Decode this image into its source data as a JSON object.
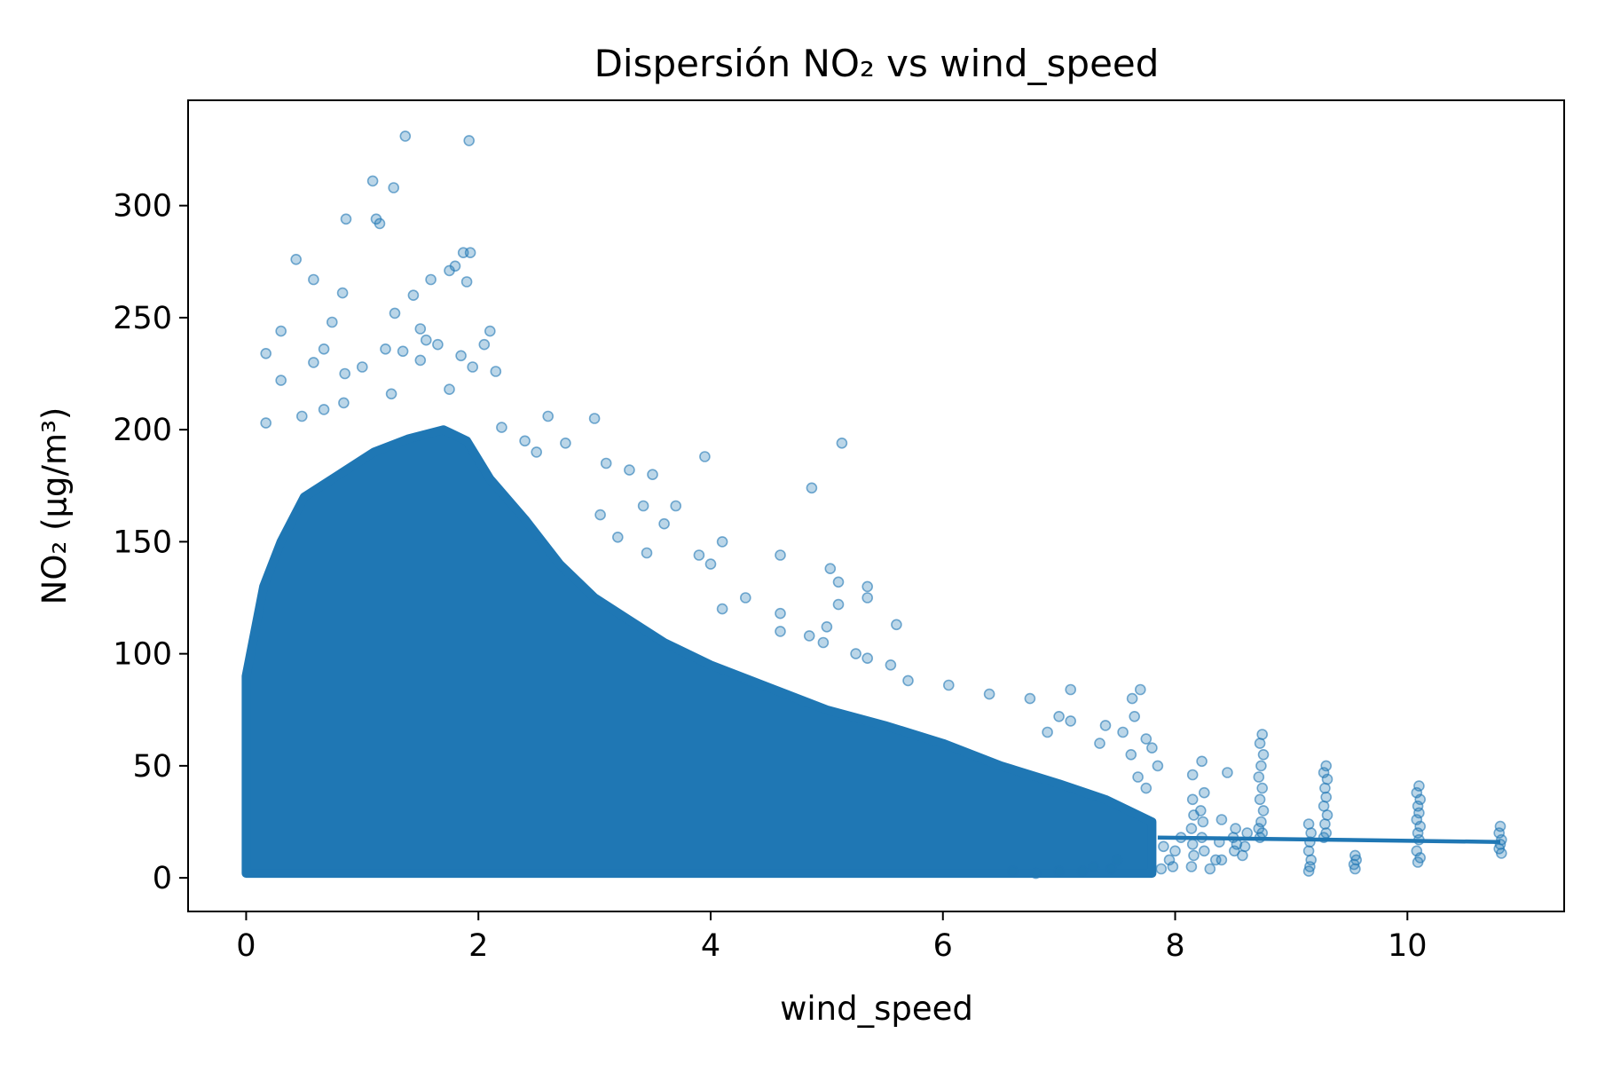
{
  "chart_data": {
    "type": "scatter",
    "title": "Dispersión NO₂ vs wind_speed",
    "xlabel": "wind_speed",
    "ylabel": "NO₂ (µg/m³)",
    "xlim": [
      -0.5,
      11.35
    ],
    "ylim": [
      -15,
      347
    ],
    "xticks": [
      0,
      2,
      4,
      6,
      8,
      10
    ],
    "yticks": [
      0,
      50,
      100,
      150,
      200,
      250,
      300
    ],
    "grid": false,
    "legend": "none",
    "colors": {
      "points": "#1f77b4",
      "trend": "#1f77b4",
      "axes": "#000000"
    },
    "series": [
      {
        "type": "scatter",
        "note_dense_envelope": [
          [
            0.0,
            2
          ],
          [
            0.0,
            90
          ],
          [
            0.15,
            130
          ],
          [
            0.3,
            150
          ],
          [
            0.5,
            170
          ],
          [
            0.8,
            180
          ],
          [
            1.1,
            190
          ],
          [
            1.4,
            196
          ],
          [
            1.7,
            200
          ],
          [
            1.9,
            195
          ],
          [
            2.1,
            178
          ],
          [
            2.4,
            160
          ],
          [
            2.7,
            140
          ],
          [
            3.0,
            125
          ],
          [
            3.3,
            115
          ],
          [
            3.6,
            105
          ],
          [
            4.0,
            95
          ],
          [
            4.5,
            85
          ],
          [
            5.0,
            75
          ],
          [
            5.5,
            68
          ],
          [
            6.0,
            60
          ],
          [
            6.5,
            50
          ],
          [
            7.0,
            42
          ],
          [
            7.4,
            35
          ],
          [
            7.8,
            25
          ],
          [
            7.8,
            2
          ]
        ],
        "points": [
          [
            1.37,
            331
          ],
          [
            1.92,
            329
          ],
          [
            1.09,
            311
          ],
          [
            1.27,
            308
          ],
          [
            1.12,
            294
          ],
          [
            0.86,
            294
          ],
          [
            1.15,
            292
          ],
          [
            1.87,
            279
          ],
          [
            1.93,
            279
          ],
          [
            0.43,
            276
          ],
          [
            1.8,
            273
          ],
          [
            1.75,
            271
          ],
          [
            0.58,
            267
          ],
          [
            1.59,
            267
          ],
          [
            1.9,
            266
          ],
          [
            0.83,
            261
          ],
          [
            1.44,
            260
          ],
          [
            1.28,
            252
          ],
          [
            0.74,
            248
          ],
          [
            0.3,
            244
          ],
          [
            1.5,
            245
          ],
          [
            1.55,
            240
          ],
          [
            2.1,
            244
          ],
          [
            0.17,
            234
          ],
          [
            0.67,
            236
          ],
          [
            1.2,
            236
          ],
          [
            0.58,
            230
          ],
          [
            1.35,
            235
          ],
          [
            1.65,
            238
          ],
          [
            1.85,
            233
          ],
          [
            2.05,
            238
          ],
          [
            0.3,
            222
          ],
          [
            0.85,
            225
          ],
          [
            1.0,
            228
          ],
          [
            1.5,
            231
          ],
          [
            1.95,
            228
          ],
          [
            2.15,
            226
          ],
          [
            0.48,
            206
          ],
          [
            0.67,
            209
          ],
          [
            0.84,
            212
          ],
          [
            1.25,
            216
          ],
          [
            1.75,
            218
          ],
          [
            0.17,
            203
          ],
          [
            2.2,
            201
          ],
          [
            2.6,
            206
          ],
          [
            3.0,
            205
          ],
          [
            2.4,
            195
          ],
          [
            2.5,
            190
          ],
          [
            2.75,
            194
          ],
          [
            3.1,
            185
          ],
          [
            3.3,
            182
          ],
          [
            3.5,
            180
          ],
          [
            3.95,
            188
          ],
          [
            4.87,
            174
          ],
          [
            5.13,
            194
          ],
          [
            3.42,
            166
          ],
          [
            3.7,
            166
          ],
          [
            3.05,
            162
          ],
          [
            3.6,
            158
          ],
          [
            3.2,
            152
          ],
          [
            4.1,
            150
          ],
          [
            3.45,
            145
          ],
          [
            3.9,
            144
          ],
          [
            4.0,
            140
          ],
          [
            4.6,
            144
          ],
          [
            5.03,
            138
          ],
          [
            5.1,
            132
          ],
          [
            5.35,
            130
          ],
          [
            4.3,
            125
          ],
          [
            4.1,
            120
          ],
          [
            4.6,
            118
          ],
          [
            5.1,
            122
          ],
          [
            5.6,
            113
          ],
          [
            5.35,
            125
          ],
          [
            4.6,
            110
          ],
          [
            4.85,
            108
          ],
          [
            5.0,
            112
          ],
          [
            5.25,
            100
          ],
          [
            5.35,
            98
          ],
          [
            5.55,
            95
          ],
          [
            4.97,
            105
          ],
          [
            5.7,
            88
          ],
          [
            6.05,
            86
          ],
          [
            6.4,
            82
          ],
          [
            6.75,
            80
          ],
          [
            7.1,
            84
          ],
          [
            7.7,
            84
          ],
          [
            7.63,
            80
          ],
          [
            7.0,
            72
          ],
          [
            7.1,
            70
          ],
          [
            7.4,
            68
          ],
          [
            7.65,
            72
          ],
          [
            7.55,
            65
          ],
          [
            6.9,
            65
          ],
          [
            7.35,
            60
          ],
          [
            7.75,
            62
          ],
          [
            7.8,
            58
          ],
          [
            7.62,
            55
          ],
          [
            7.85,
            50
          ],
          [
            7.68,
            45
          ],
          [
            7.75,
            40
          ],
          [
            8.23,
            52
          ],
          [
            8.15,
            46
          ],
          [
            8.45,
            47
          ],
          [
            8.75,
            64
          ],
          [
            8.73,
            60
          ],
          [
            8.76,
            55
          ],
          [
            8.74,
            50
          ],
          [
            8.72,
            45
          ],
          [
            8.75,
            40
          ],
          [
            8.73,
            35
          ],
          [
            8.76,
            30
          ],
          [
            8.74,
            25
          ],
          [
            8.72,
            22
          ],
          [
            8.75,
            20
          ],
          [
            8.73,
            18
          ],
          [
            9.3,
            50
          ],
          [
            9.28,
            47
          ],
          [
            9.31,
            44
          ],
          [
            9.29,
            40
          ],
          [
            9.3,
            36
          ],
          [
            9.28,
            32
          ],
          [
            9.31,
            28
          ],
          [
            9.29,
            24
          ],
          [
            9.3,
            20
          ],
          [
            9.28,
            18
          ],
          [
            10.1,
            41
          ],
          [
            10.08,
            38
          ],
          [
            10.11,
            35
          ],
          [
            10.09,
            32
          ],
          [
            10.1,
            29
          ],
          [
            10.08,
            26
          ],
          [
            10.11,
            23
          ],
          [
            10.09,
            20
          ],
          [
            10.1,
            17
          ],
          [
            10.08,
            12
          ],
          [
            10.11,
            9
          ],
          [
            10.09,
            7
          ],
          [
            9.15,
            24
          ],
          [
            9.17,
            20
          ],
          [
            9.16,
            16
          ],
          [
            9.15,
            12
          ],
          [
            9.17,
            8
          ],
          [
            9.16,
            5
          ],
          [
            9.15,
            3
          ],
          [
            9.55,
            10
          ],
          [
            9.56,
            8
          ],
          [
            9.54,
            6
          ],
          [
            9.55,
            4
          ],
          [
            10.8,
            23
          ],
          [
            10.79,
            20
          ],
          [
            10.81,
            17
          ],
          [
            10.8,
            15
          ],
          [
            10.79,
            13
          ],
          [
            10.81,
            11
          ],
          [
            8.15,
            35
          ],
          [
            8.16,
            28
          ],
          [
            8.14,
            22
          ],
          [
            8.15,
            15
          ],
          [
            8.16,
            10
          ],
          [
            8.14,
            5
          ],
          [
            8.05,
            18
          ],
          [
            8.0,
            12
          ],
          [
            7.95,
            8
          ],
          [
            7.9,
            14
          ],
          [
            7.88,
            4
          ],
          [
            8.25,
            38
          ],
          [
            8.22,
            30
          ],
          [
            8.24,
            25
          ],
          [
            8.23,
            18
          ],
          [
            8.25,
            12
          ],
          [
            8.52,
            22
          ],
          [
            8.5,
            18
          ],
          [
            8.53,
            15
          ],
          [
            8.51,
            12
          ],
          [
            8.4,
            26
          ],
          [
            8.38,
            16
          ],
          [
            8.4,
            8
          ],
          [
            8.62,
            20
          ],
          [
            8.6,
            14
          ],
          [
            8.58,
            10
          ],
          [
            7.98,
            5
          ],
          [
            8.3,
            4
          ],
          [
            8.35,
            8
          ],
          [
            7.3,
            5
          ],
          [
            7.5,
            8
          ],
          [
            7.2,
            3
          ],
          [
            7.45,
            4
          ],
          [
            7.0,
            3
          ],
          [
            6.8,
            2
          ],
          [
            6.6,
            3
          ]
        ]
      },
      {
        "type": "line",
        "x": [
          7.85,
          10.8
        ],
        "y": [
          18,
          16
        ]
      }
    ]
  }
}
